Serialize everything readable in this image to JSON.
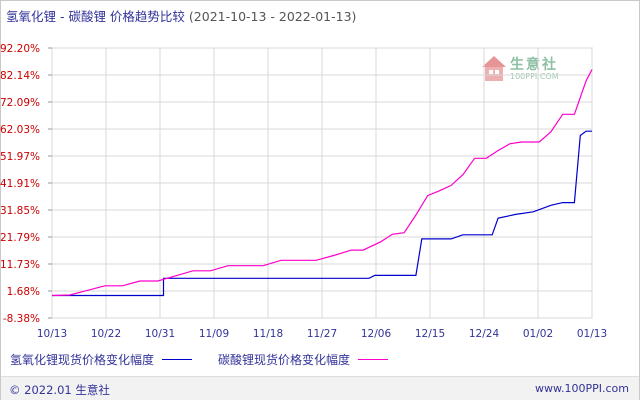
{
  "chart_data": {
    "type": "line",
    "title": "氢氧化锂 - 碳酸锂 价格趋势比较",
    "date_range": "(2021-10-13 - 2022-01-13)",
    "y_ticks": [
      "92.20%",
      "82.14%",
      "72.09%",
      "62.03%",
      "51.97%",
      "41.91%",
      "31.85%",
      "21.79%",
      "11.73%",
      "1.68%",
      "-8.38%"
    ],
    "ylim": [
      -8.38,
      92.2
    ],
    "x_ticks": [
      "10/13",
      "10/22",
      "10/31",
      "11/09",
      "11/18",
      "11/27",
      "12/06",
      "12/15",
      "12/24",
      "01/02",
      "01/13"
    ],
    "grid": true,
    "legend_position": "bottom",
    "x_axis_start": "2021-10-13",
    "x_axis_end": "2022-01-13",
    "series": [
      {
        "name": "氢氧化锂现货价格变化幅度",
        "color": "#0000cc",
        "points": [
          [
            "2021-10-13",
            0
          ],
          [
            "2021-11-01",
            0
          ],
          [
            "2021-11-01",
            6.4
          ],
          [
            "2021-12-06",
            6.4
          ],
          [
            "2021-12-07",
            7.5
          ],
          [
            "2021-12-14",
            7.5
          ],
          [
            "2021-12-15",
            21.1
          ],
          [
            "2021-12-20",
            21.1
          ],
          [
            "2021-12-22",
            22.6
          ],
          [
            "2021-12-27",
            22.6
          ],
          [
            "2021-12-28",
            28.8
          ],
          [
            "2021-12-31",
            30.2
          ],
          [
            "2022-01-03",
            31.2
          ],
          [
            "2022-01-06",
            33.6
          ],
          [
            "2022-01-08",
            34.6
          ],
          [
            "2022-01-10",
            34.6
          ],
          [
            "2022-01-11",
            59.6
          ],
          [
            "2022-01-12",
            61.2
          ],
          [
            "2022-01-13",
            61.2
          ]
        ]
      },
      {
        "name": "碳酸锂现货价格变化幅度",
        "color": "#ff00cc",
        "points": [
          [
            "2021-10-13",
            0
          ],
          [
            "2021-10-16",
            0.2
          ],
          [
            "2021-10-19",
            1.9
          ],
          [
            "2021-10-22",
            3.6
          ],
          [
            "2021-10-25",
            3.6
          ],
          [
            "2021-10-28",
            5.4
          ],
          [
            "2021-10-31",
            5.4
          ],
          [
            "2021-11-03",
            7.3
          ],
          [
            "2021-11-06",
            9.2
          ],
          [
            "2021-11-09",
            9.2
          ],
          [
            "2021-11-12",
            11.1
          ],
          [
            "2021-11-18",
            11.1
          ],
          [
            "2021-11-21",
            13.1
          ],
          [
            "2021-11-27",
            13.1
          ],
          [
            "2021-11-30",
            14.9
          ],
          [
            "2021-12-03",
            16.9
          ],
          [
            "2021-12-05",
            16.9
          ],
          [
            "2021-12-08",
            20.0
          ],
          [
            "2021-12-10",
            22.8
          ],
          [
            "2021-12-12",
            23.4
          ],
          [
            "2021-12-14",
            30.0
          ],
          [
            "2021-12-16",
            37.2
          ],
          [
            "2021-12-18",
            39.0
          ],
          [
            "2021-12-20",
            41.0
          ],
          [
            "2021-12-22",
            45.0
          ],
          [
            "2021-12-24",
            51.1
          ],
          [
            "2021-12-26",
            51.1
          ],
          [
            "2021-12-28",
            54.0
          ],
          [
            "2021-12-30",
            56.5
          ],
          [
            "2022-01-01",
            57.2
          ],
          [
            "2022-01-04",
            57.2
          ],
          [
            "2022-01-06",
            61.0
          ],
          [
            "2022-01-08",
            67.5
          ],
          [
            "2022-01-10",
            67.5
          ],
          [
            "2022-01-12",
            80.0
          ],
          [
            "2022-01-13",
            84.2
          ]
        ]
      }
    ]
  },
  "footer": {
    "copyright": "© 2022.01 生意社",
    "site": "www.100PPI.com"
  },
  "watermark": {
    "brand": "生意社",
    "url": "100PPI.COM"
  }
}
